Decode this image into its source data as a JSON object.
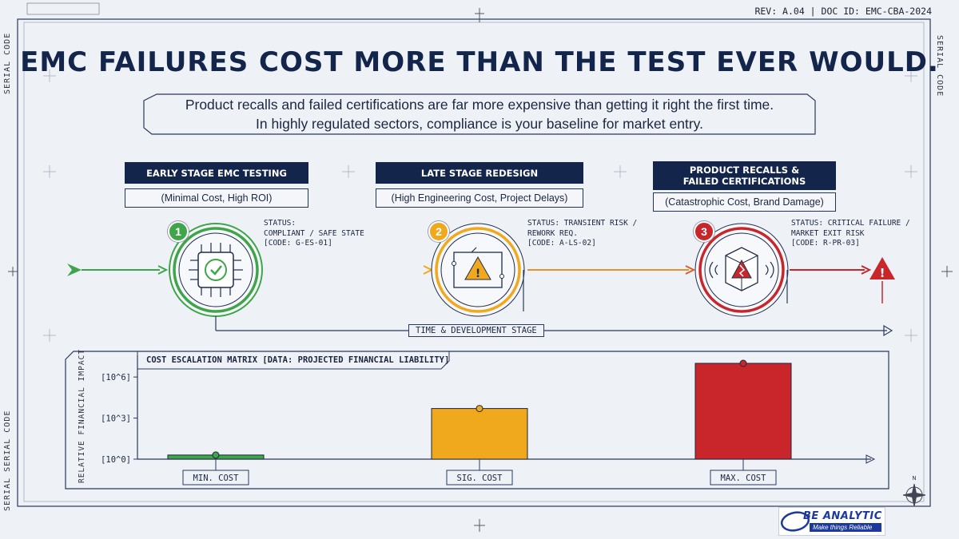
{
  "header": {
    "rev": "REV: A.04 | DOC ID: EMC-CBA-2024",
    "side_label_left": "SERIAL CODE",
    "side_label_right": "SERIAL CODE",
    "side_label_left_bottom": "SERIAL SERIAL CODE"
  },
  "title": "EMC FAILURES COST MORE THAN THE TEST EVER WOULD.",
  "subtitle": {
    "line1": "Product recalls and failed certifications are far more expensive than getting it right the first time.",
    "line2": "In highly regulated sectors, compliance is your baseline for market entry."
  },
  "stages": [
    {
      "number": "1",
      "heading": "EARLY STAGE EMC TESTING",
      "sub": "(Minimal Cost, High ROI)",
      "status": "STATUS:\nCOMPLIANT / SAFE STATE\n[CODE: G-ES-01]",
      "color": "#3fa44a",
      "icon": "circuit-chip-check-icon"
    },
    {
      "number": "2",
      "heading": "LATE STAGE REDESIGN",
      "sub": "(High Engineering Cost, Project Delays)",
      "status": "STATUS: TRANSIENT RISK /\nREWORK REQ.\n[CODE: A-LS-02]",
      "color": "#f0a81c",
      "icon": "circuit-warning-icon"
    },
    {
      "number": "3",
      "heading_line1": "PRODUCT RECALLS &",
      "heading_line2": "FAILED CERTIFICATIONS",
      "sub": "(Catastrophic Cost, Brand Damage)",
      "status": "STATUS: CRITICAL FAILURE /\nMARKET EXIT RISK\n[CODE: R-PR-03]",
      "color": "#c8262b",
      "icon": "broken-box-icon"
    }
  ],
  "timeline_label": "TIME & DEVELOPMENT STAGE",
  "chart_data": {
    "type": "bar",
    "title": "COST ESCALATION MATRIX [DATA: PROJECTED FINANCIAL LIABILITY]",
    "ylabel": "RELATIVE FINANCIAL IMPACT",
    "yscale": "log",
    "ylim": [
      1,
      10000000
    ],
    "yticks": [
      {
        "value": 1,
        "label": "[10^0]"
      },
      {
        "value": 1000,
        "label": "[10^3]"
      },
      {
        "value": 1000000,
        "label": "[10^6]"
      }
    ],
    "categories": [
      "MIN. COST",
      "SIG. COST",
      "MAX. COST"
    ],
    "values": [
      2,
      5000,
      10000000
    ],
    "colors": [
      "#3fa44a",
      "#f0a81c",
      "#c8262b"
    ]
  },
  "logo": {
    "top": "BE ANALYTIC",
    "tagline": "Make things Reliable"
  },
  "colors": {
    "navy": "#13254a",
    "green": "#3fa44a",
    "orange": "#f0a81c",
    "red": "#c8262b"
  }
}
